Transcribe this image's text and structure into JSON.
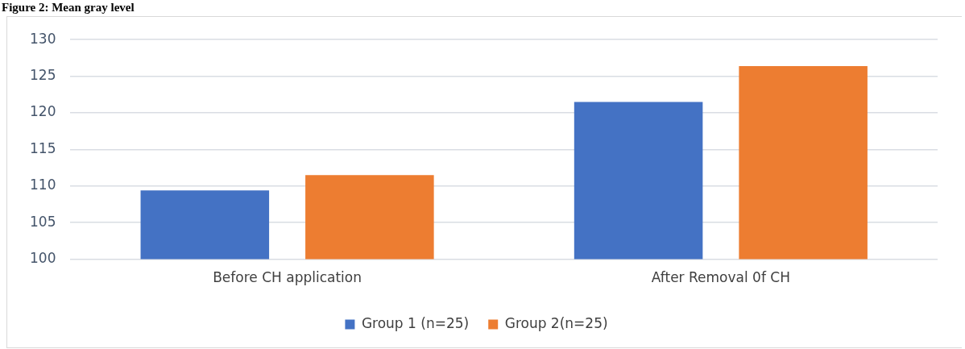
{
  "chart_data": {
    "type": "bar",
    "title": "Figure 2: Mean gray level",
    "categories": [
      "Before CH application",
      "After Removal 0f CH"
    ],
    "series": [
      {
        "name": "Group 1 (n=25)",
        "color": "#4472c4",
        "values": [
          109.4,
          121.5
        ]
      },
      {
        "name": "Group 2(n=25)",
        "color": "#ed7d31",
        "values": [
          111.5,
          126.4
        ]
      }
    ],
    "ylim": [
      100,
      130
    ],
    "yticks": [
      100,
      105,
      110,
      115,
      120,
      125,
      130
    ],
    "grid": "y",
    "legend": "bottom"
  }
}
